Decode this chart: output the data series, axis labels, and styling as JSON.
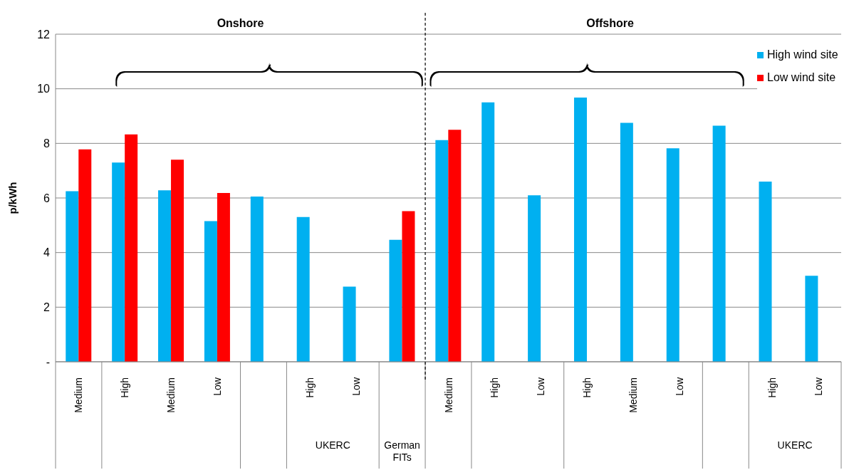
{
  "chart_data": {
    "type": "bar",
    "categories": [
      "Medium",
      "High",
      "Medium",
      "Low",
      null,
      "High",
      "Low",
      null,
      "Medium",
      "High",
      "Low",
      "High",
      "Medium",
      "Low",
      null,
      "High",
      "Low"
    ],
    "series": [
      {
        "name": "High wind site",
        "color": "#00b0f0",
        "values": [
          6.25,
          7.3,
          6.28,
          5.15,
          6.05,
          5.3,
          2.75,
          4.47,
          8.12,
          9.5,
          6.1,
          9.68,
          8.75,
          7.82,
          8.65,
          6.6,
          3.15
        ]
      },
      {
        "name": "Low wind site",
        "color": "#ff0000",
        "values": [
          7.78,
          8.33,
          7.4,
          6.18,
          null,
          null,
          null,
          5.52,
          8.5,
          null,
          null,
          null,
          null,
          null,
          null,
          null,
          null
        ]
      }
    ],
    "ylabel": "p/kWh",
    "ylim": [
      0,
      12
    ],
    "yticks": [
      {
        "value": 0,
        "label": "-"
      },
      2,
      4,
      6,
      8,
      10,
      12
    ],
    "grid": "y",
    "legend": "top right",
    "annotations": [
      "Onshore",
      "Offshore",
      "UKERC",
      "German FITs",
      "UKERC"
    ]
  }
}
